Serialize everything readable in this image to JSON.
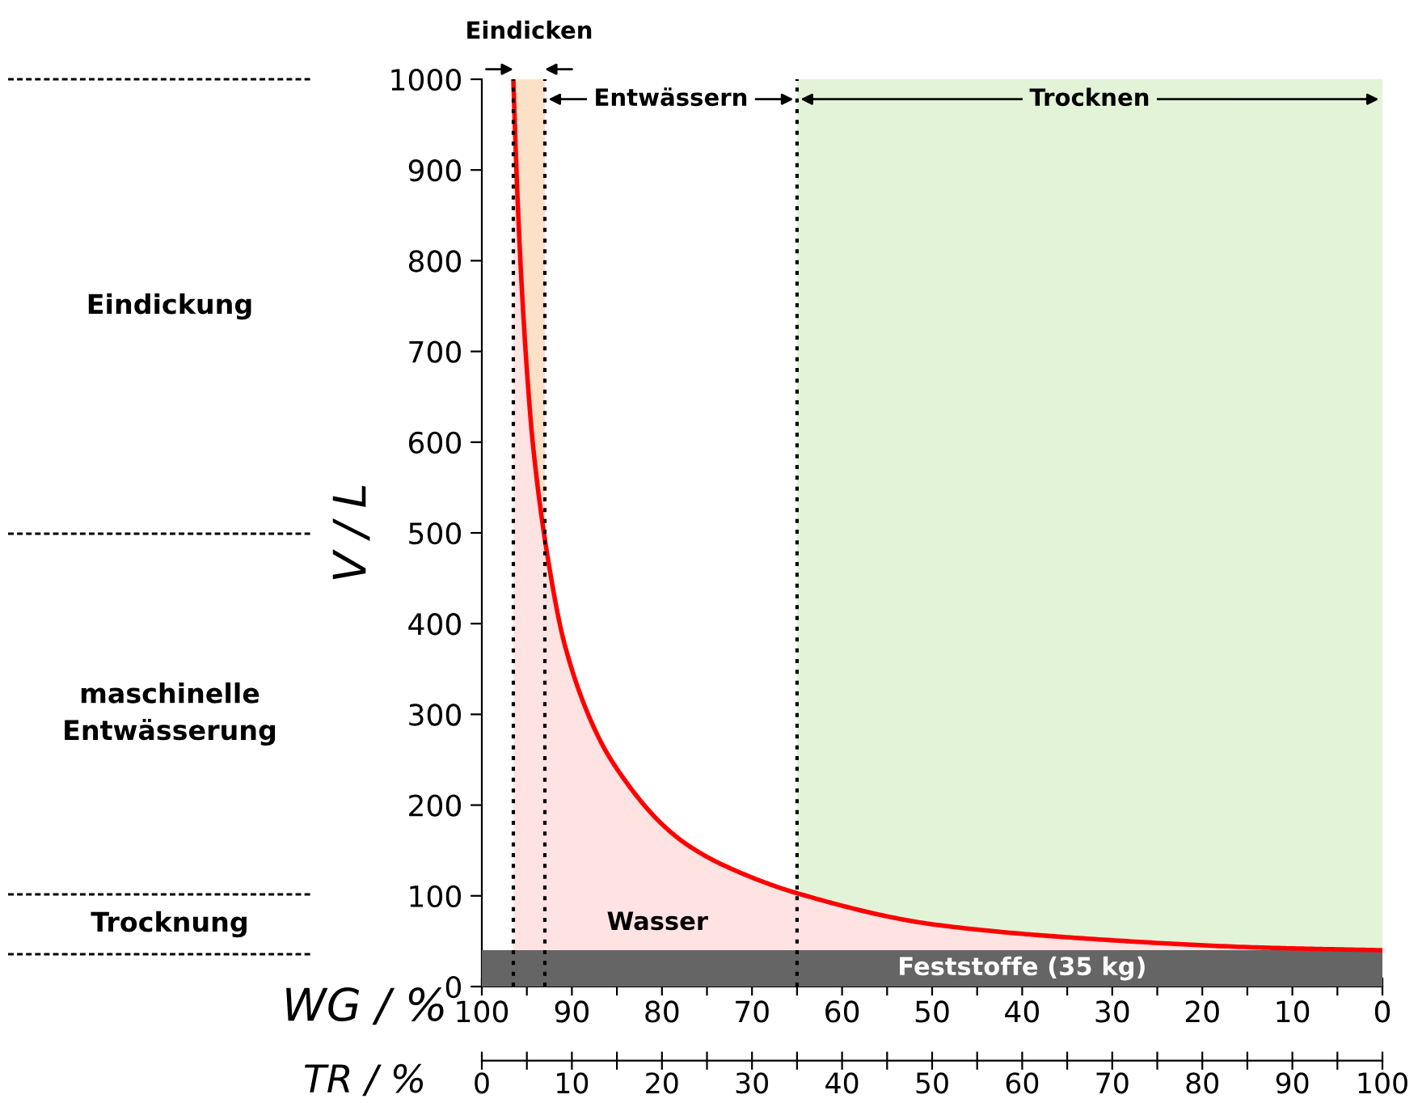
{
  "chart_data": {
    "type": "area",
    "xlabel": "TR / %",
    "x2label": "WG / %",
    "ylabel": "V / L",
    "x": [
      3.5,
      3.8,
      4.25,
      5,
      5.7,
      7.4,
      9.2,
      12.8,
      15,
      19.9,
      23,
      27,
      35.3,
      50.5,
      68.5,
      86.4,
      100
    ],
    "series": [
      {
        "color": "#ff0000",
        "values": [
          1000,
          912,
          806,
          680,
          595,
          468,
          377,
          278,
          240,
          180,
          155,
          133,
          102,
          68,
          52,
          43,
          40
        ]
      }
    ],
    "xlim": [
      0,
      100
    ],
    "xticks": [
      0,
      {
        "value": 5,
        "label": null
      },
      10,
      {
        "value": 15,
        "label": null
      },
      20,
      {
        "value": 25,
        "label": null
      },
      30,
      {
        "value": 35,
        "label": null
      },
      40,
      {
        "value": 45,
        "label": null
      },
      50,
      {
        "value": 55,
        "label": null
      },
      60,
      {
        "value": 65,
        "label": null
      },
      70,
      {
        "value": 75,
        "label": null
      },
      80,
      {
        "value": 85,
        "label": null
      },
      90,
      {
        "value": 95,
        "label": null
      },
      100
    ],
    "x2lim": [
      100,
      0
    ],
    "x2ticks": [
      100,
      {
        "value": 95,
        "label": null
      },
      90,
      {
        "value": 85,
        "label": null
      },
      80,
      {
        "value": 75,
        "label": null
      },
      70,
      {
        "value": 65,
        "label": null
      },
      60,
      {
        "value": 55,
        "label": null
      },
      50,
      {
        "value": 45,
        "label": null
      },
      40,
      {
        "value": 35,
        "label": null
      },
      30,
      {
        "value": 25,
        "label": null
      },
      20,
      {
        "value": 15,
        "label": null
      },
      10,
      {
        "value": 5,
        "label": null
      },
      0
    ],
    "ylim": [
      0,
      1000
    ],
    "yticks": [
      0,
      100,
      200,
      300,
      400,
      500,
      600,
      700,
      800,
      900,
      1000
    ],
    "bands": [
      {
        "axis": "x",
        "from": 3.5,
        "to": 7,
        "label": "Eindicken",
        "color": "#fde0c8"
      },
      {
        "axis": "x",
        "from": 35,
        "to": 100,
        "label": "Trocknen",
        "color": "#e2f3d8"
      },
      {
        "axis": "y",
        "from": 0,
        "to": 40,
        "label": "Feststoffe (35 kg)",
        "color": "#656565"
      }
    ],
    "ref_lines": [
      {
        "axis": "x",
        "value": 3.5,
        "line_style": "dotted"
      },
      {
        "axis": "x",
        "value": 7,
        "line_style": "dotted"
      },
      {
        "axis": "x",
        "value": 35,
        "line_style": "dotted"
      }
    ],
    "annotations": [
      "Eindickung",
      "maschinelle\nEntwässerung",
      "Trocknung",
      "Wasser",
      "Entwässern"
    ],
    "grid": false,
    "legend": false
  }
}
